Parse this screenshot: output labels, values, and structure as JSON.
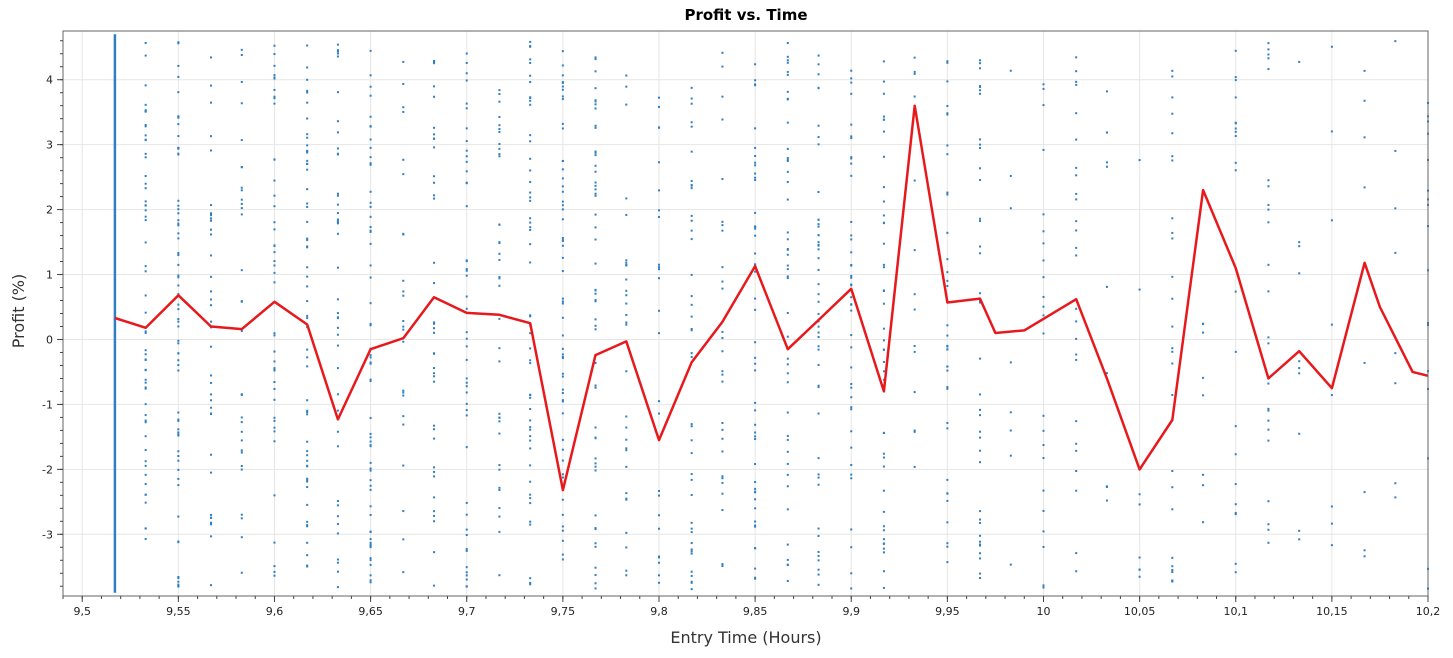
{
  "chart_data": {
    "type": "scatter",
    "title": "Profit vs. Time",
    "xlabel": "Entry Time (Hours)",
    "ylabel": "Profit (%)",
    "xlim": [
      9.49,
      10.2
    ],
    "ylim": [
      -3.95,
      4.75
    ],
    "x_ticks": [
      9.5,
      9.55,
      9.6,
      9.65,
      9.7,
      9.75,
      9.8,
      9.85,
      9.9,
      9.95,
      10,
      10.05,
      10.1,
      10.15,
      10.2
    ],
    "x_tick_labels": [
      "9,5",
      "9,55",
      "9,6",
      "9,65",
      "9,7",
      "9,75",
      "9,8",
      "9,85",
      "9,9",
      "9,95",
      "10",
      "10,05",
      "10,1",
      "10,15",
      "10,2"
    ],
    "y_ticks": [
      -3,
      -2,
      -1,
      0,
      1,
      2,
      3,
      4
    ],
    "y_tick_labels": [
      "-3",
      "-2",
      "-1",
      "0",
      "1",
      "2",
      "3",
      "4"
    ],
    "grid": true,
    "colors": {
      "scatter": "#2f7fc1",
      "line": "#e8191c"
    },
    "series": [
      {
        "type": "line",
        "x": [
          9.517,
          9.533,
          9.55,
          9.567,
          9.583,
          9.6,
          9.617,
          9.633,
          9.65,
          9.667,
          9.683,
          9.7,
          9.717,
          9.733,
          9.75,
          9.767,
          9.783,
          9.8,
          9.817,
          9.833,
          9.85,
          9.867,
          9.883,
          9.9,
          9.917,
          9.933,
          9.95,
          9.967,
          9.975,
          9.99,
          10.017,
          10.033,
          10.05,
          10.067,
          10.083,
          10.1,
          10.117,
          10.133,
          10.15,
          10.167,
          10.175,
          10.192,
          10.2
        ],
        "y": [
          0.33,
          0.18,
          0.68,
          0.2,
          0.16,
          0.58,
          0.23,
          -1.23,
          -0.15,
          0.02,
          0.65,
          0.41,
          0.38,
          0.25,
          -2.32,
          -0.24,
          -0.03,
          -1.55,
          -0.35,
          0.27,
          1.13,
          -0.15,
          0.3,
          0.78,
          -0.8,
          3.6,
          0.57,
          0.63,
          0.1,
          0.14,
          0.62,
          -0.6,
          -2.0,
          -1.24,
          2.3,
          1.1,
          -0.6,
          -0.18,
          -0.75,
          1.18,
          0.5,
          -0.5,
          -0.56
        ]
      },
      {
        "type": "scatter",
        "columns_x": [
          9.533,
          9.55,
          9.567,
          9.583,
          9.6,
          9.617,
          9.633,
          9.65,
          9.667,
          9.683,
          9.7,
          9.717,
          9.733,
          9.75,
          9.767,
          9.783,
          9.8,
          9.817,
          9.833,
          9.85,
          9.867,
          9.883,
          9.9,
          9.917,
          9.933,
          9.95,
          9.967,
          9.983,
          10.0,
          10.017,
          10.033,
          10.05,
          10.067,
          10.083,
          10.1,
          10.117,
          10.133,
          10.15,
          10.167,
          10.183,
          10.2
        ],
        "dense_column_x": 9.517,
        "dense_column_range": [
          -3.9,
          4.7
        ]
      }
    ]
  }
}
